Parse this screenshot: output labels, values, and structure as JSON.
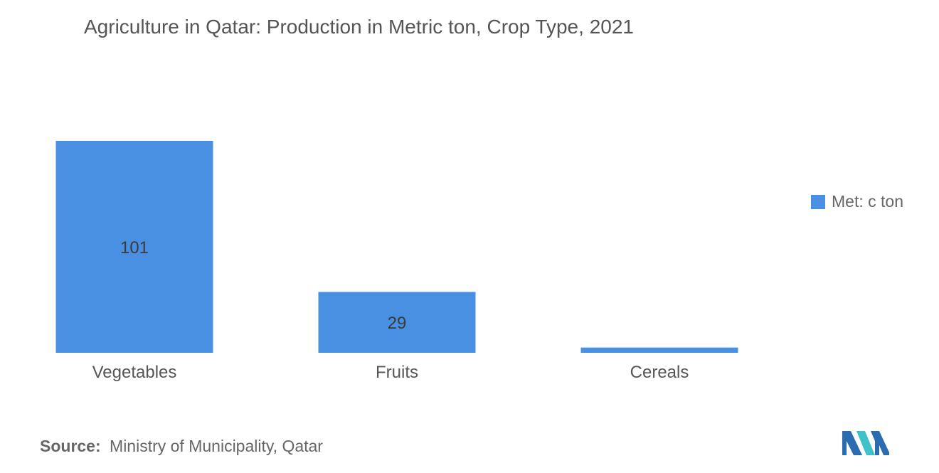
{
  "chart_data": {
    "type": "bar",
    "title": "Agriculture in Qatar: Production in Metric ton, Crop Type, 2021",
    "categories": [
      "Vegetables",
      "Fruits",
      "Cereals"
    ],
    "series": [
      {
        "name": "Met: c ton",
        "values": [
          101,
          29,
          2.5
        ],
        "data_labels": [
          "101",
          "29",
          ""
        ]
      }
    ],
    "ylim": [
      0,
      101
    ],
    "grid": false,
    "legend_position": "right",
    "colors": {
      "bar": "#4a90e2",
      "label_text": "#3a3a3a",
      "axis_text": "#555555"
    }
  },
  "source": {
    "label": "Source:",
    "text": "Ministry of Municipality, Qatar"
  },
  "logo": {
    "icon": "mordor-intelligence-logo-icon",
    "colors": [
      "#2b6cb0",
      "#3ec1c9"
    ]
  }
}
